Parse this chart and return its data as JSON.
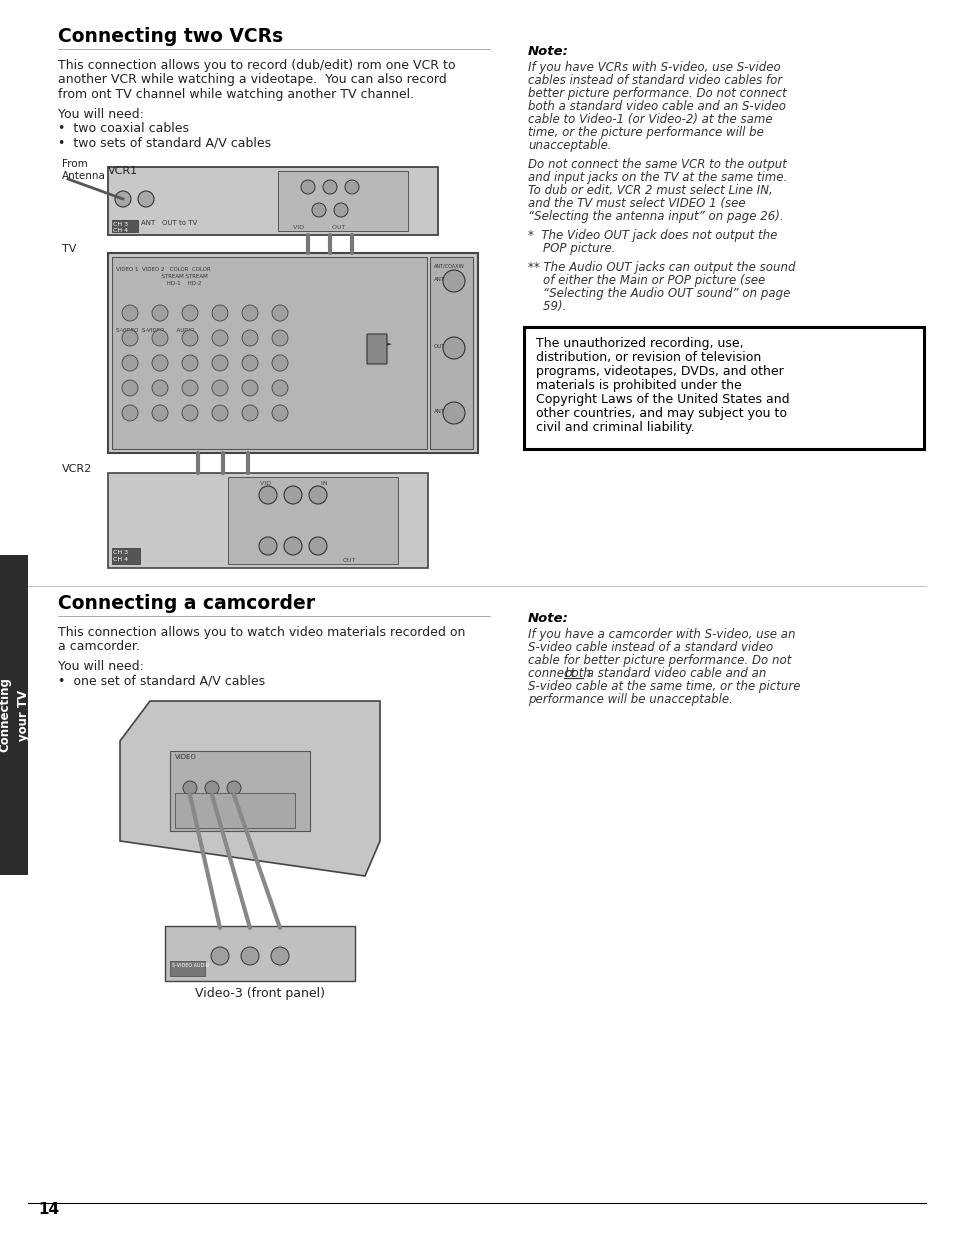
{
  "page_bg": "#ffffff",
  "sidebar_bg": "#2c2c2c",
  "sidebar_text": "Connecting\nyour TV",
  "sidebar_text_color": "#ffffff",
  "section1_title": "Connecting two VCRs",
  "section1_body": [
    "This connection allows you to record (dub/edit) rom one VCR to",
    "another VCR while watching a videotape.  You can also record",
    "from ont TV channel while watching another TV channel.",
    "",
    "You will need:",
    "•  two coaxial cables",
    "•  two sets of standard A/V cables"
  ],
  "note1_title": "Note:",
  "note1_lines": [
    "If you have VCRs with S-video, use S-video",
    "cables instead of standard video cables for",
    "better picture performance. Do not connect",
    "both a standard video cable and an S-video",
    "cable to Video-1 (or Video-2) at the same",
    "time, or the picture performance will be",
    "unacceptable.",
    "",
    "Do not connect the same VCR to the output",
    "and input jacks on the TV at the same time.",
    "To dub or edit, VCR 2 must select Line IN,",
    "and the TV must select VIDEO 1 (see",
    "“Selecting the antenna input” on page 26).",
    "",
    "*  The Video OUT jack does not output the",
    "    POP picture.",
    "",
    "** The Audio OUT jacks can output the sound",
    "    of either the Main or POP picture (see",
    "    “Selecting the Audio OUT sound” on page",
    "    59)."
  ],
  "box_text": "The unauthorized recording, use,\ndistribution, or revision of television\nprograms, videotapes, DVDs, and other\nmaterials is prohibited under the\nCopyright Laws of the United States and\nother countries, and may subject you to\ncivil and criminal liability.",
  "section2_title": "Connecting a camcorder",
  "section2_body": [
    "This connection allows you to watch video materials recorded on",
    "a camcorder.",
    "",
    "You will need:",
    "•  one set of standard A/V cables"
  ],
  "diagram2_label": "Video-3 (front panel)",
  "note2_title": "Note:",
  "note2_lines": [
    "If you have a camcorder with S-video, use an",
    "S-video cable instead of a standard video",
    "cable for better picture performance. Do not",
    "connect both a standard video cable and an",
    "S-video cable at the same time, or the picture",
    "performance will be unacceptable."
  ],
  "page_number": "14"
}
